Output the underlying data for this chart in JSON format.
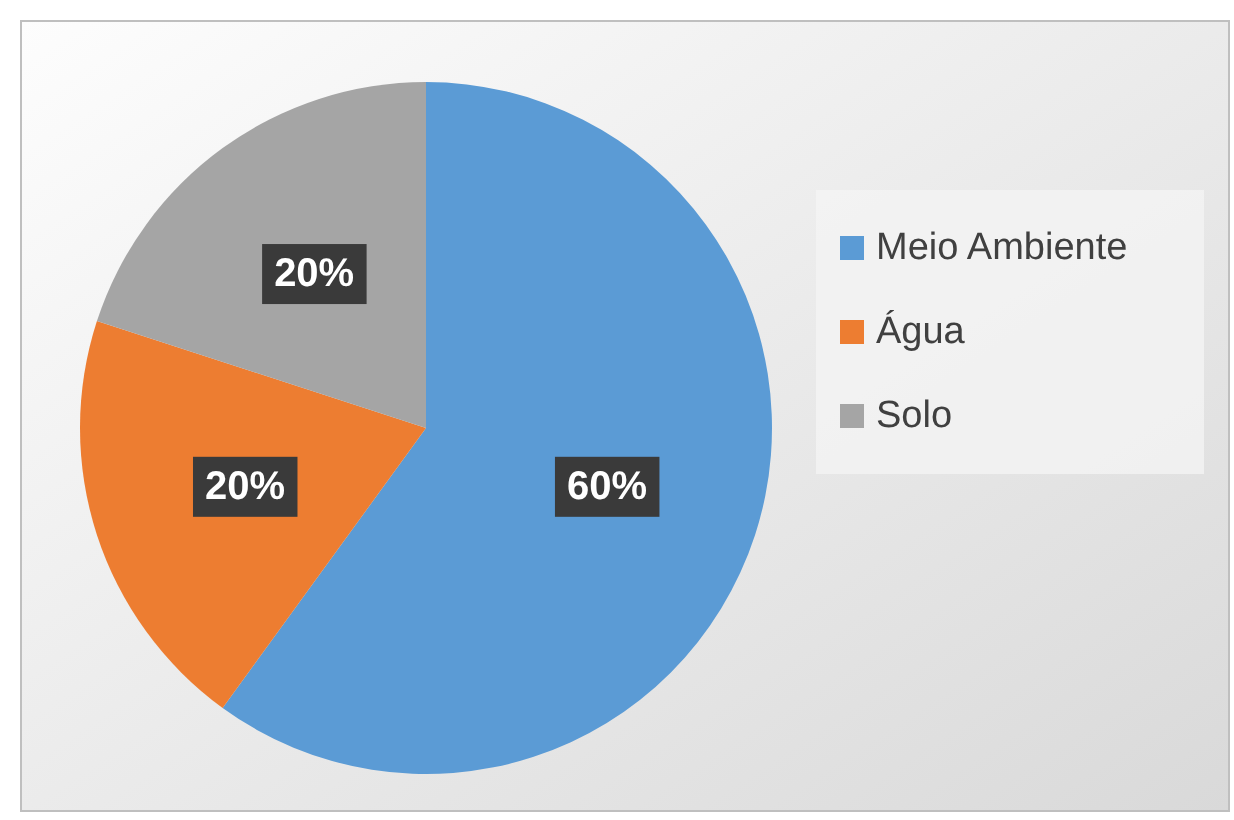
{
  "chart_data": {
    "type": "pie",
    "categories": [
      "Meio Ambiente",
      "Água",
      "Solo"
    ],
    "values": [
      60,
      20,
      20
    ],
    "colors": [
      "#5b9bd5",
      "#ed7d31",
      "#a5a5a5"
    ],
    "value_labels": [
      "60%",
      "20%",
      "20%"
    ],
    "legend": "right"
  }
}
